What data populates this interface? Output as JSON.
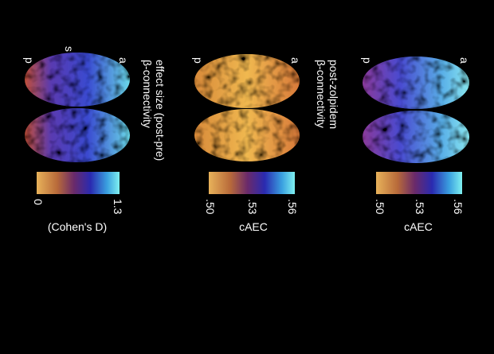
{
  "panels": [
    {
      "title": [
        "β-connectivity",
        "effect size (post-pre)"
      ],
      "orientation": {
        "posterior": "p",
        "superior": "s",
        "anterior": "a"
      },
      "colorbar": {
        "ticks": [
          "0",
          "1.3"
        ],
        "label": "(Cohen's D)"
      }
    },
    {
      "title": [
        "β-connectivity",
        "post-zolpidem"
      ],
      "orientation": {
        "posterior": "p",
        "anterior": "a"
      },
      "colorbar": {
        "ticks": [
          ".50",
          ".53",
          ".56"
        ],
        "label": "cAEC"
      }
    },
    {
      "orientation": {
        "posterior": "p",
        "anterior": "a"
      },
      "colorbar": {
        "ticks": [
          ".50",
          ".53",
          ".56"
        ],
        "label": "cAEC"
      }
    }
  ]
}
